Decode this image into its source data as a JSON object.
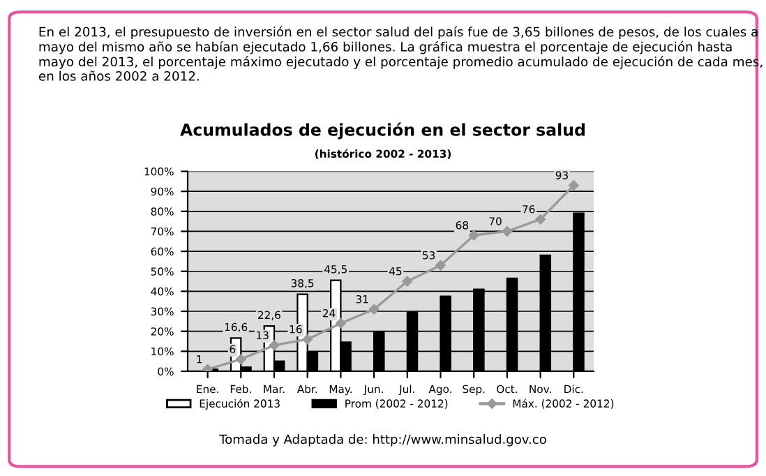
{
  "chart_data": {
    "type": "bar",
    "title": "Acumulados de ejecución en el sector salud",
    "subtitle": "(histórico 2002 - 2013)",
    "annotations": [
      "En el 2013, el presupuesto de inversión en el sector salud del país fue de 3,65 billones de pesos, de los cuales a mayo del mismo año se habían ejecutado 1,66 billones. La gráfica muestra el porcentaje de ejecución hasta mayo del 2013, el porcentaje máximo ejecutado y el porcentaje promedio acumulado de ejecución de cada mes, en los años 2002 a 2012.",
      "Tomada y Adaptada de: http://www.minsalud.gov.co"
    ],
    "categories": [
      "Ene.",
      "Feb.",
      "Mar.",
      "Abr.",
      "May.",
      "Jun.",
      "Jul.",
      "Ago.",
      "Sep.",
      "Oct.",
      "Nov.",
      "Dic."
    ],
    "series": [
      {
        "name": "Ejecución 2013",
        "color": "#ffffff",
        "values": [
          null,
          16.6,
          22.6,
          38.5,
          45.5,
          null,
          null,
          null,
          null,
          null,
          null,
          null
        ],
        "value_labels": [
          null,
          "16,6",
          "22,6",
          "38,5",
          "45,5",
          null,
          null,
          null,
          null,
          null,
          null,
          null
        ]
      },
      {
        "name": "Prom (2002 - 2012)",
        "color": "#000000",
        "values": [
          1,
          2,
          5,
          9.5,
          14.5,
          19.5,
          29.5,
          37.5,
          41,
          46.5,
          58,
          79
        ]
      },
      {
        "name": "Máx. (2002 - 2012)",
        "type": "line",
        "color": "#999999",
        "marker": "diamond",
        "values": [
          1,
          6,
          13,
          16,
          24,
          31,
          45,
          53,
          68,
          70,
          76,
          93
        ],
        "value_labels": [
          "1",
          "6",
          "13",
          "16",
          "24",
          "31",
          "45",
          "53",
          "68",
          "70",
          "76",
          "93"
        ]
      }
    ],
    "ylim": [
      0,
      100
    ],
    "yticks": [
      {
        "value": 0,
        "label": "0%"
      },
      {
        "value": 10,
        "label": "10%"
      },
      {
        "value": 20,
        "label": "20%"
      },
      {
        "value": 30,
        "label": "30%"
      },
      {
        "value": 40,
        "label": "40%"
      },
      {
        "value": 50,
        "label": "50%"
      },
      {
        "value": 60,
        "label": "60%"
      },
      {
        "value": 70,
        "label": "70%"
      },
      {
        "value": 80,
        "label": "80%"
      },
      {
        "value": 90,
        "label": "90%"
      },
      {
        "value": 100,
        "label": "100%"
      }
    ],
    "grid": "y",
    "legend": "bottom"
  }
}
